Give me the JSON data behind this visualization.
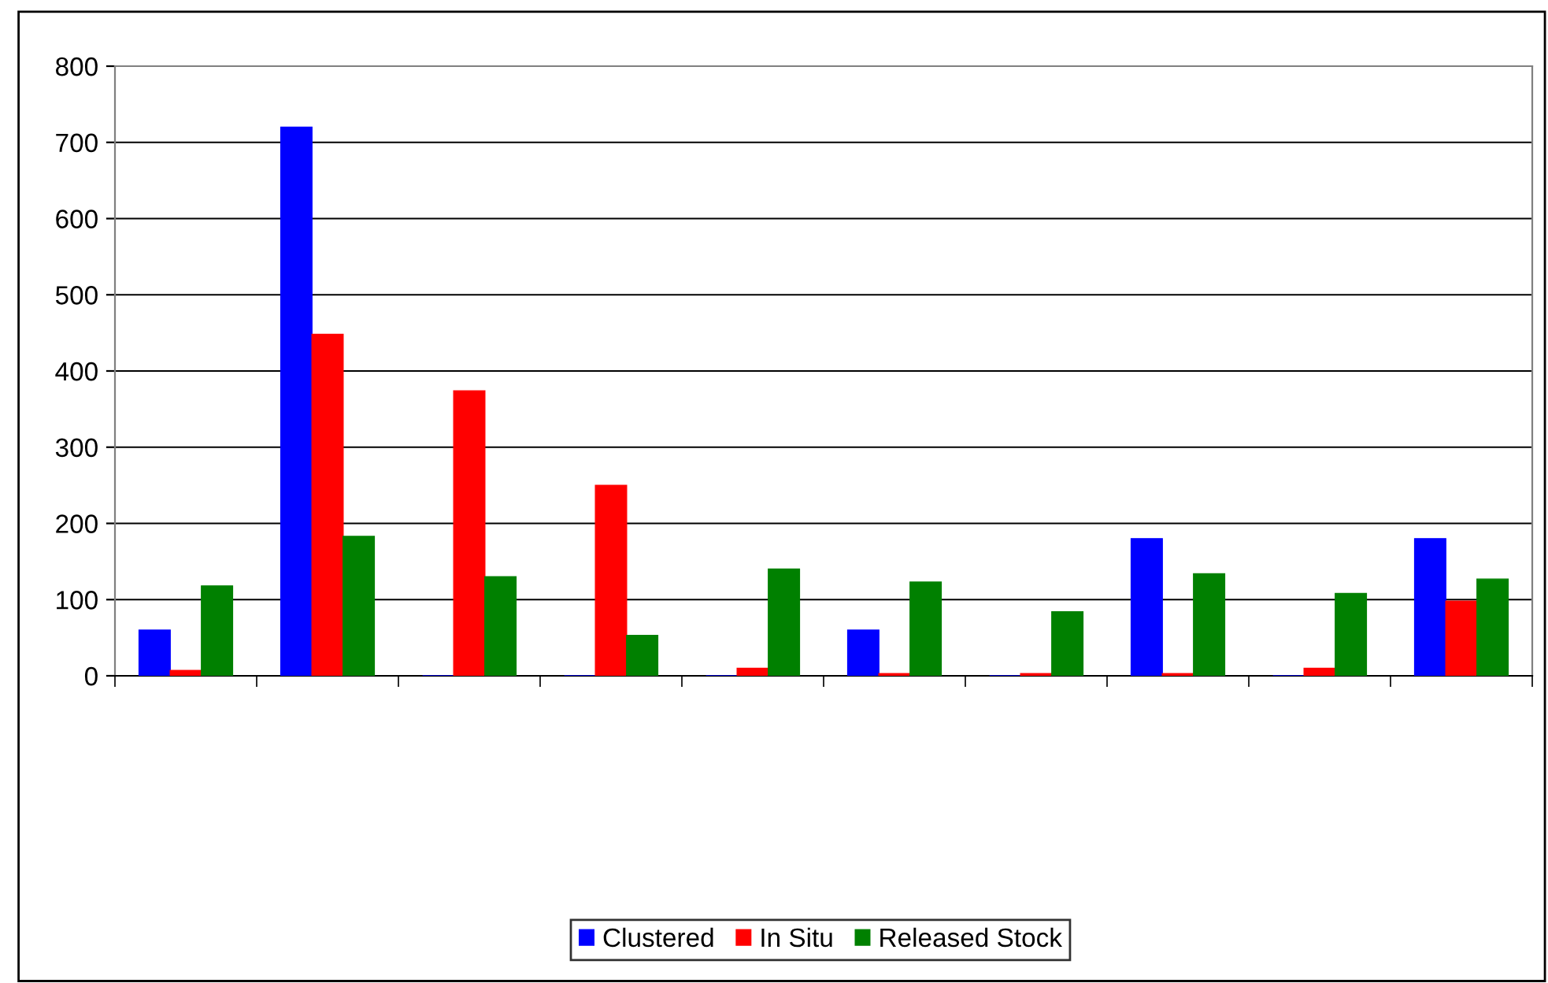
{
  "chart_data": {
    "type": "bar",
    "categories": [
      null,
      null,
      null,
      null,
      null,
      null,
      null,
      null,
      null,
      null
    ],
    "series": [
      {
        "name": "Clustered",
        "color": "#0000ff",
        "values": [
          60,
          720,
          0,
          0,
          0,
          60,
          0,
          180,
          0,
          180
        ]
      },
      {
        "name": "In Situ",
        "color": "#ff0000",
        "values": [
          7,
          448,
          374,
          250,
          10,
          3,
          3,
          3,
          10,
          98
        ]
      },
      {
        "name": "Released Stock",
        "color": "#008000",
        "values": [
          118,
          183,
          130,
          53,
          140,
          123,
          84,
          134,
          108,
          127
        ]
      }
    ],
    "ylim": [
      0,
      800
    ],
    "yticks": [
      0,
      100,
      200,
      300,
      400,
      500,
      600,
      700,
      800
    ],
    "grid": "y",
    "legend": "bottom"
  }
}
